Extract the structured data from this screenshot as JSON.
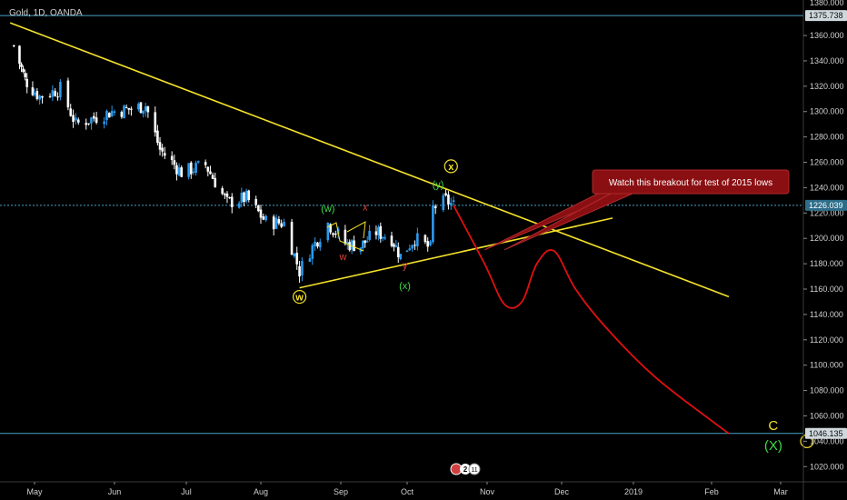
{
  "header": {
    "symbol_label": "Gold, 1D, OANDA"
  },
  "colors": {
    "background": "#000000",
    "candle_up": "#2a9bf0",
    "candle_down": "#ffffff",
    "trendline": "#f4e12a",
    "projection": "#e01010",
    "price_line": "#4aa3c8",
    "callout_bg": "#8a0f12",
    "green_label": "#3ddc4a",
    "red_label": "#e0403a",
    "yellow_label": "#f4e12a"
  },
  "chart_data": {
    "type": "candlestick",
    "instrument": "Gold",
    "timeframe": "1D",
    "source": "OANDA",
    "ylim": [
      1008,
      1388
    ],
    "y_ticks": [
      1020,
      1040,
      1060,
      1080,
      1100,
      1120,
      1140,
      1160,
      1180,
      1200,
      1220,
      1240,
      1260,
      1280,
      1300,
      1320,
      1340,
      1360
    ],
    "x_ticks": [
      "May",
      "Jun",
      "Jul",
      "Aug",
      "Sep",
      "Oct",
      "Nov",
      "Dec",
      "2019",
      "Feb",
      "Mar"
    ],
    "price_markers": [
      {
        "value": 1375.738,
        "label": "1375.738"
      },
      {
        "value": 1226.039,
        "label": "1226.039"
      },
      {
        "value": 1046.135,
        "label": "1046.135"
      }
    ],
    "top_partial_tick": "1380.000",
    "close_path": [
      {
        "date": "2018-04-20",
        "value": 1352
      },
      {
        "date": "2018-04-26",
        "value": 1325
      },
      {
        "date": "2018-05-03",
        "value": 1312
      },
      {
        "date": "2018-05-11",
        "value": 1318
      },
      {
        "date": "2018-05-17",
        "value": 1290
      },
      {
        "date": "2018-05-31",
        "value": 1300
      },
      {
        "date": "2018-06-08",
        "value": 1302
      },
      {
        "date": "2018-06-14",
        "value": 1305
      },
      {
        "date": "2018-06-20",
        "value": 1270
      },
      {
        "date": "2018-06-29",
        "value": 1252
      },
      {
        "date": "2018-07-09",
        "value": 1258
      },
      {
        "date": "2018-07-18",
        "value": 1228
      },
      {
        "date": "2018-07-26",
        "value": 1232
      },
      {
        "date": "2018-08-03",
        "value": 1213
      },
      {
        "date": "2018-08-10",
        "value": 1212
      },
      {
        "date": "2018-08-16",
        "value": 1174
      },
      {
        "date": "2018-08-20",
        "value": 1190
      },
      {
        "date": "2018-08-27",
        "value": 1212
      },
      {
        "date": "2018-09-03",
        "value": 1196
      },
      {
        "date": "2018-09-10",
        "value": 1194
      },
      {
        "date": "2018-09-17",
        "value": 1205
      },
      {
        "date": "2018-09-24",
        "value": 1200
      },
      {
        "date": "2018-09-28",
        "value": 1186
      },
      {
        "date": "2018-10-04",
        "value": 1200
      },
      {
        "date": "2018-10-10",
        "value": 1192
      },
      {
        "date": "2018-10-11",
        "value": 1224
      },
      {
        "date": "2018-10-16",
        "value": 1230
      },
      {
        "date": "2018-10-19",
        "value": 1226
      }
    ],
    "trendlines": [
      {
        "name": "descending resistance",
        "from": {
          "date": "2018-04-18",
          "value": 1370
        },
        "to": {
          "date": "2019-02-08",
          "value": 1154
        }
      },
      {
        "name": "rising support",
        "from": {
          "date": "2018-08-16",
          "value": 1161
        },
        "to": {
          "date": "2018-12-23",
          "value": 1216
        }
      }
    ],
    "projection_path": [
      {
        "date": "2018-10-19",
        "value": 1226
      },
      {
        "date": "2018-10-31",
        "value": 1180
      },
      {
        "date": "2018-11-08",
        "value": 1148
      },
      {
        "date": "2018-11-15",
        "value": 1150
      },
      {
        "date": "2018-11-21",
        "value": 1180
      },
      {
        "date": "2018-11-28",
        "value": 1190
      },
      {
        "date": "2018-12-07",
        "value": 1160
      },
      {
        "date": "2018-12-20",
        "value": 1130
      },
      {
        "date": "2019-01-10",
        "value": 1090
      },
      {
        "date": "2019-02-08",
        "value": 1046
      }
    ],
    "wave_labels": [
      {
        "text": "w",
        "circled": true,
        "color": "yellow",
        "date": "2018-08-16",
        "value": 1151
      },
      {
        "text": "(w)",
        "circled": false,
        "color": "green",
        "date": "2018-08-27",
        "value": 1221
      },
      {
        "text": "x",
        "circled": false,
        "color": "red",
        "date": "2018-09-12",
        "value": 1222
      },
      {
        "text": "w",
        "circled": false,
        "color": "red",
        "date": "2018-09-02",
        "value": 1183
      },
      {
        "text": "y",
        "circled": false,
        "color": "red",
        "date": "2018-09-30",
        "value": 1176
      },
      {
        "text": "(x)",
        "circled": false,
        "color": "green",
        "date": "2018-09-30",
        "value": 1160
      },
      {
        "text": "(y)",
        "circled": false,
        "color": "green",
        "date": "2018-10-13",
        "value": 1240
      },
      {
        "text": "x",
        "circled": true,
        "color": "yellow",
        "date": "2018-10-18",
        "value": 1254
      },
      {
        "text": "C",
        "circled": false,
        "color": "yellow",
        "date": "2019-02-26",
        "value": 1049
      },
      {
        "text": "(X)",
        "circled": false,
        "color": "green",
        "date": "2019-02-26",
        "value": 1033
      }
    ],
    "annotation": {
      "text": "Watch this breakout for test of 2015 lows",
      "pointer_tips": [
        {
          "date": "2018-10-31",
          "value": 1191
        },
        {
          "date": "2018-11-08",
          "value": 1191
        }
      ]
    },
    "bottom_badge": {
      "count": "2",
      "extra": "11"
    }
  }
}
